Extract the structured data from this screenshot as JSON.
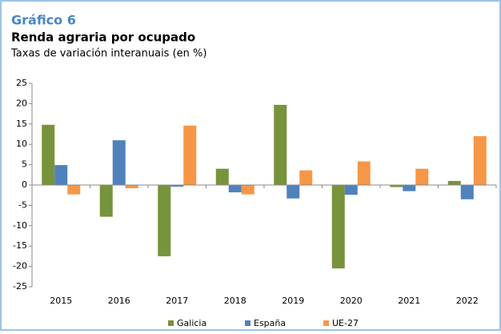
{
  "chart_data": {
    "type": "bar",
    "label": "Gráfico  6",
    "title": "Renda agraria por ocupado",
    "subtitle": "Taxas de variación interanuais (en %)",
    "categories": [
      "2015",
      "2016",
      "2017",
      "2018",
      "2019",
      "2020",
      "2021",
      "2022"
    ],
    "series": [
      {
        "name": "Galicia",
        "color": "#77933c",
        "values": [
          14.8,
          -7.8,
          -17.5,
          4.0,
          19.7,
          -20.5,
          -0.5,
          1.0
        ]
      },
      {
        "name": "España",
        "color": "#4f81bd",
        "values": [
          4.9,
          11.0,
          -0.4,
          -1.8,
          -3.3,
          -2.4,
          -1.5,
          -3.5
        ]
      },
      {
        "name": "UE-27",
        "color": "#f79646",
        "values": [
          -2.3,
          -0.8,
          14.6,
          -2.3,
          3.6,
          5.8,
          4.0,
          12.0
        ]
      }
    ],
    "ylim": [
      -25,
      25
    ],
    "yticks": [
      -25,
      -20,
      -15,
      -10,
      -5,
      0,
      5,
      10,
      15,
      20,
      25
    ],
    "grid": false,
    "legend": "bottom"
  }
}
